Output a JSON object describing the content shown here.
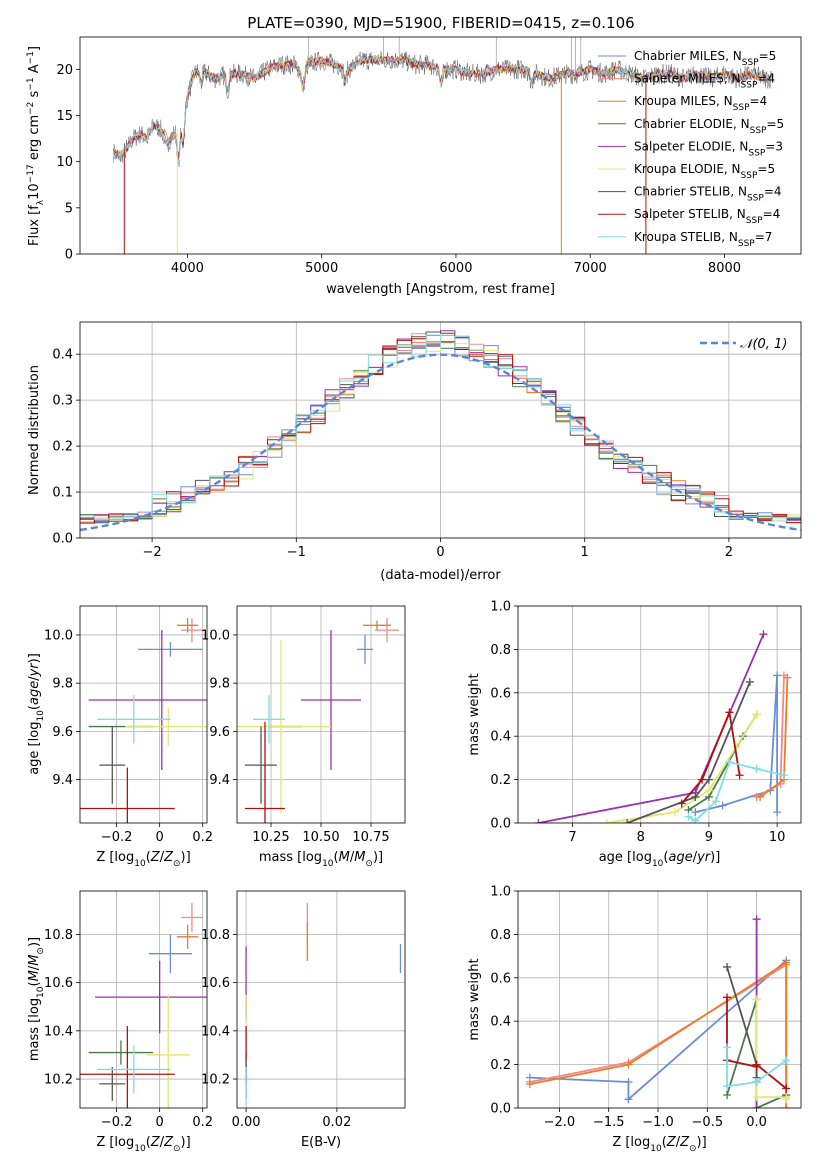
{
  "figure_title": "PLATE=0390, MJD=51900, FIBERID=0415, z=0.106",
  "models": [
    {
      "name": "Chabrier MILES",
      "nssp": "5",
      "color": "#6a8fd6"
    },
    {
      "name": "Salpeter MILES",
      "nssp": "4",
      "color": "#f08a8a"
    },
    {
      "name": "Kroupa MILES",
      "nssp": "4",
      "color": "#e87d2b"
    },
    {
      "name": "Chabrier ELODIE",
      "nssp": "5",
      "color": "#4a7a4a"
    },
    {
      "name": "Salpeter ELODIE",
      "nssp": "3",
      "color": "#9b30b0"
    },
    {
      "name": "Kroupa ELODIE",
      "nssp": "5",
      "color": "#dfe870"
    },
    {
      "name": "Chabrier STELIB",
      "nssp": "4",
      "color": "#555555"
    },
    {
      "name": "Salpeter STELIB",
      "nssp": "4",
      "color": "#b01010"
    },
    {
      "name": "Kroupa STELIB",
      "nssp": "7",
      "color": "#80dde6"
    }
  ],
  "nssp_label": "N",
  "nssp_sub": "SSP",
  "chart_data": [
    {
      "type": "line",
      "id": "spectrum",
      "xlabel": "wavelength [Angstrom, rest frame]",
      "ylabel": "Flux [f_λ10^-17 erg cm^-2 s^-1 A^-1]",
      "xlim": [
        3200,
        8570
      ],
      "ylim": [
        0,
        23.5
      ],
      "xticks": [
        4000,
        5000,
        6000,
        7000,
        8000
      ],
      "yticks": [
        0,
        5,
        10,
        15,
        20
      ],
      "x": [
        3450,
        3500,
        3550,
        3600,
        3650,
        3700,
        3750,
        3800,
        3850,
        3900,
        3950,
        4000,
        4050,
        4100,
        4150,
        4200,
        4300,
        4400,
        4500,
        4600,
        4700,
        4800,
        4860,
        4900,
        5000,
        5100,
        5200,
        5300,
        5400,
        5500,
        5600,
        5700,
        5800,
        5900,
        6000,
        6100,
        6200,
        6300,
        6400,
        6500,
        6600,
        6700,
        6800,
        6900,
        7000,
        7100,
        7200,
        7300,
        7400,
        7500,
        7600,
        7700,
        7800,
        7900,
        8000,
        8100,
        8200,
        8300
      ],
      "y": [
        11,
        10.5,
        11.5,
        12.5,
        13,
        12.5,
        14,
        13.5,
        12,
        13,
        14,
        17,
        19.5,
        20,
        19.5,
        19,
        19.5,
        19.5,
        19,
        20,
        20.5,
        20.5,
        19.5,
        20.5,
        21,
        20.5,
        20,
        21,
        21,
        21,
        21,
        20.5,
        20.5,
        20,
        20,
        19.5,
        19.5,
        20,
        20,
        20,
        19.5,
        19,
        19.5,
        19.5,
        20,
        19.5,
        20,
        19.5,
        19,
        19.5,
        19.5,
        19,
        19.5,
        19,
        19.5,
        19,
        19.5,
        19
      ],
      "legend_position": "upper-right"
    },
    {
      "type": "line",
      "id": "residual-histogram",
      "xlabel": "(data-model)/error",
      "ylabel": "Normed distribution",
      "xlim": [
        -2.5,
        2.5
      ],
      "ylim": [
        0,
        0.47
      ],
      "xticks": [
        -2,
        -1,
        0,
        1,
        2
      ],
      "yticks": [
        0.0,
        0.1,
        0.2,
        0.3,
        0.4
      ],
      "bin_width": 0.1,
      "bin_start": -2.5,
      "reference_label": "𝒩(0, 1)",
      "reference_color": "#5b86d6",
      "legend_position": "upper-right"
    },
    {
      "type": "scatter",
      "id": "age-vs-Z",
      "xlabel": "Z [log10(Z/Z⊙)]",
      "ylabel": "age  [log10(age/yr)]",
      "xlim": [
        -0.37,
        0.22
      ],
      "ylim": [
        9.22,
        10.12
      ],
      "xticks": [
        -0.2,
        0.0,
        0.2
      ],
      "yticks": [
        9.4,
        9.6,
        9.8,
        10.0
      ],
      "points": [
        {
          "x": 0.05,
          "y": 9.94,
          "xerr": 0.15,
          "yerr": 0.03,
          "c": 0
        },
        {
          "x": 0.15,
          "y": 10.02,
          "xerr": 0.05,
          "yerr": 0.05,
          "c": 1
        },
        {
          "x": 0.13,
          "y": 10.04,
          "xerr": 0.05,
          "yerr": 0.03,
          "c": 2
        },
        {
          "x": -0.18,
          "y": 9.62,
          "xerr": 0.15,
          "yerr": 0.0,
          "c": 3
        },
        {
          "x": 0.01,
          "y": 9.73,
          "xerr": 0.34,
          "yerr": 0.29,
          "c": 4
        },
        {
          "x": 0.04,
          "y": 9.62,
          "xerr": 0.2,
          "yerr": 0.08,
          "c": 5
        },
        {
          "x": -0.22,
          "y": 9.46,
          "xerr": 0.06,
          "yerr": 0.16,
          "c": 6
        },
        {
          "x": -0.15,
          "y": 9.28,
          "xerr": 0.22,
          "yerr": 0.17,
          "c": 7
        },
        {
          "x": -0.12,
          "y": 9.65,
          "xerr": 0.17,
          "yerr": 0.1,
          "c": 8
        }
      ]
    },
    {
      "type": "scatter",
      "id": "age-vs-mass",
      "xlabel": "mass [log10(M/M⊙)]",
      "ylabel": "",
      "xlim": [
        10.08,
        10.92
      ],
      "ylim": [
        9.22,
        10.12
      ],
      "xticks": [
        10.25,
        10.5,
        10.75
      ],
      "xticklabels": [
        "10.25",
        "10.50",
        "10.75"
      ],
      "yticks": [
        9.4,
        9.6,
        9.8,
        10.0
      ],
      "points": [
        {
          "x": 10.72,
          "y": 9.94,
          "xerr": 0.04,
          "yerr": 0.06,
          "c": 0
        },
        {
          "x": 10.83,
          "y": 10.02,
          "xerr": 0.06,
          "yerr": 0.05,
          "c": 1
        },
        {
          "x": 10.78,
          "y": 10.04,
          "xerr": 0.07,
          "yerr": 0.02,
          "c": 2
        },
        {
          "x": 10.32,
          "y": 9.62,
          "xerr": 0.08,
          "yerr": 0.0,
          "c": 3
        },
        {
          "x": 10.55,
          "y": 9.73,
          "xerr": 0.15,
          "yerr": 0.29,
          "c": 4
        },
        {
          "x": 10.3,
          "y": 9.62,
          "xerr": 0.25,
          "yerr": 0.36,
          "c": 5
        },
        {
          "x": 10.2,
          "y": 9.46,
          "xerr": 0.08,
          "yerr": 0.16,
          "c": 6
        },
        {
          "x": 10.22,
          "y": 9.28,
          "xerr": 0.1,
          "yerr": 0.36,
          "c": 7
        },
        {
          "x": 10.24,
          "y": 9.65,
          "xerr": 0.08,
          "yerr": 0.1,
          "c": 8
        }
      ]
    },
    {
      "type": "line",
      "id": "mass-weight-vs-age",
      "xlabel": "age  [log10(age/yr)]",
      "ylabel": "mass weight",
      "xlim": [
        6.2,
        10.35
      ],
      "ylim": [
        0,
        1
      ],
      "xticks": [
        7,
        8,
        9,
        10
      ],
      "yticks": [
        0.0,
        0.2,
        0.4,
        0.6,
        0.8,
        1.0
      ],
      "series": [
        {
          "c": 0,
          "x": [
            8.8,
            9.2,
            9.9,
            10.0,
            10.0
          ],
          "y": [
            0.05,
            0.08,
            0.15,
            0.68,
            0.05
          ]
        },
        {
          "c": 1,
          "x": [
            9.7,
            10.05,
            10.1
          ],
          "y": [
            0.12,
            0.18,
            0.68
          ]
        },
        {
          "c": 2,
          "x": [
            9.75,
            10.1,
            10.15
          ],
          "y": [
            0.12,
            0.2,
            0.67
          ]
        },
        {
          "c": 3,
          "x": [
            8.7,
            9.0,
            9.5,
            9.7
          ],
          "y": [
            0.06,
            0.12,
            0.4,
            0.5
          ]
        },
        {
          "c": 4,
          "x": [
            6.5,
            8.8,
            9.8
          ],
          "y": [
            0.0,
            0.14,
            0.87
          ]
        },
        {
          "c": 5,
          "x": [
            7.5,
            8.5,
            9.0,
            9.4,
            9.7
          ],
          "y": [
            0.0,
            0.05,
            0.15,
            0.35,
            0.5
          ]
        },
        {
          "c": 6,
          "x": [
            7.8,
            8.8,
            9.0,
            9.6
          ],
          "y": [
            0.0,
            0.12,
            0.2,
            0.65
          ]
        },
        {
          "c": 7,
          "x": [
            8.6,
            8.9,
            9.3,
            9.45
          ],
          "y": [
            0.09,
            0.2,
            0.51,
            0.22
          ]
        },
        {
          "c": 8,
          "x": [
            8.7,
            8.8,
            9.1,
            9.3,
            9.7,
            10.1
          ],
          "y": [
            0.03,
            0.01,
            0.1,
            0.28,
            0.25,
            0.22
          ]
        }
      ]
    },
    {
      "type": "scatter",
      "id": "mass-vs-Z",
      "xlabel": "Z [log10(Z/Z⊙)]",
      "ylabel": "mass [log10(M/M⊙)]",
      "xlim": [
        -0.37,
        0.22
      ],
      "ylim": [
        10.08,
        10.98
      ],
      "xticks": [
        -0.2,
        0.0,
        0.2
      ],
      "yticks": [
        10.2,
        10.4,
        10.6,
        10.8
      ],
      "points": [
        {
          "x": 0.05,
          "y": 10.72,
          "xerr": 0.1,
          "yerr": 0.08,
          "c": 0
        },
        {
          "x": 0.15,
          "y": 10.87,
          "xerr": 0.05,
          "yerr": 0.06,
          "c": 1
        },
        {
          "x": 0.13,
          "y": 10.79,
          "xerr": 0.05,
          "yerr": 0.05,
          "c": 2
        },
        {
          "x": -0.18,
          "y": 10.31,
          "xerr": 0.15,
          "yerr": 0.05,
          "c": 3
        },
        {
          "x": 0.0,
          "y": 10.54,
          "xerr": 0.3,
          "yerr": 0.15,
          "c": 4
        },
        {
          "x": 0.04,
          "y": 10.3,
          "xerr": 0.1,
          "yerr": 0.25,
          "c": 5
        },
        {
          "x": -0.22,
          "y": 10.18,
          "xerr": 0.06,
          "yerr": 0.07,
          "c": 6
        },
        {
          "x": -0.15,
          "y": 10.22,
          "xerr": 0.22,
          "yerr": 0.2,
          "c": 7
        },
        {
          "x": -0.12,
          "y": 10.24,
          "xerr": 0.17,
          "yerr": 0.1,
          "c": 8
        }
      ]
    },
    {
      "type": "scatter",
      "id": "mass-vs-EBV",
      "xlabel": "E(B-V)",
      "ylabel": "",
      "xlim": [
        -0.002,
        0.035
      ],
      "ylim": [
        10.08,
        10.98
      ],
      "xticks": [
        0.0,
        0.02
      ],
      "xticklabels": [
        "0.00",
        "0.02"
      ],
      "yticks": [
        10.2,
        10.4,
        10.6,
        10.8
      ],
      "points": [
        {
          "x": 0.034,
          "y": 10.7,
          "xerr": 0,
          "yerr": 0.06,
          "c": 0
        },
        {
          "x": 0.0135,
          "y": 10.85,
          "xerr": 0,
          "yerr": 0.08,
          "c": 1
        },
        {
          "x": 0.0135,
          "y": 10.77,
          "xerr": 0,
          "yerr": 0.08,
          "c": 2
        },
        {
          "x": 0.0,
          "y": 10.25,
          "xerr": 0,
          "yerr": 0.06,
          "c": 3
        },
        {
          "x": 0.0,
          "y": 10.6,
          "xerr": 0,
          "yerr": 0.15,
          "c": 4
        },
        {
          "x": 0.0,
          "y": 10.45,
          "xerr": 0,
          "yerr": 0.1,
          "c": 5
        },
        {
          "x": 0.0,
          "y": 10.2,
          "xerr": 0,
          "yerr": 0.08,
          "c": 6
        },
        {
          "x": 0.0,
          "y": 10.35,
          "xerr": 0,
          "yerr": 0.07,
          "c": 7
        },
        {
          "x": 0.0,
          "y": 10.17,
          "xerr": 0,
          "yerr": 0.08,
          "c": 8
        }
      ]
    },
    {
      "type": "line",
      "id": "mass-weight-vs-Z",
      "xlabel": "Z [log10(Z/Z⊙)]",
      "ylabel": "mass weight",
      "xlim": [
        -2.42,
        0.45
      ],
      "ylim": [
        0,
        1
      ],
      "xticks": [
        -2.0,
        -1.5,
        -1.0,
        -0.5,
        0.0
      ],
      "xticklabels": [
        "−2.0",
        "−1.5",
        "−1.0",
        "−0.5",
        "0.0"
      ],
      "yticks": [
        0.0,
        0.2,
        0.4,
        0.6,
        0.8,
        1.0
      ],
      "series": [
        {
          "c": 0,
          "x": [
            -2.3,
            -1.3,
            -1.3,
            0.3,
            0.3
          ],
          "y": [
            0.14,
            0.12,
            0.04,
            0.68,
            0.05
          ]
        },
        {
          "c": 1,
          "x": [
            -2.3,
            -1.3,
            0.3,
            0.3
          ],
          "y": [
            0.12,
            0.21,
            0.66,
            0.06
          ]
        },
        {
          "c": 2,
          "x": [
            -2.3,
            -1.3,
            0.3,
            0.3
          ],
          "y": [
            0.11,
            0.2,
            0.67,
            0.0
          ]
        },
        {
          "c": 3,
          "x": [
            -0.3,
            0.0,
            0.0,
            0.3
          ],
          "y": [
            0.06,
            0.5,
            0.0,
            0.06
          ]
        },
        {
          "c": 4,
          "x": [
            0.0,
            0.0,
            0.0
          ],
          "y": [
            0.87,
            0.14,
            0.0
          ]
        },
        {
          "c": 5,
          "x": [
            0.0,
            0.0,
            0.3,
            0.3
          ],
          "y": [
            0.5,
            0.05,
            0.05,
            0.04
          ]
        },
        {
          "c": 6,
          "x": [
            -0.3,
            0.0,
            0.0
          ],
          "y": [
            0.65,
            0.2,
            0.12
          ]
        },
        {
          "c": 7,
          "x": [
            -0.3,
            -0.3,
            0.0,
            0.0,
            0.3
          ],
          "y": [
            0.51,
            0.22,
            0.19,
            0.2,
            0.09
          ]
        },
        {
          "c": 8,
          "x": [
            -0.3,
            -0.3,
            0.0,
            0.3
          ],
          "y": [
            0.28,
            0.1,
            0.12,
            0.22
          ]
        }
      ]
    }
  ]
}
